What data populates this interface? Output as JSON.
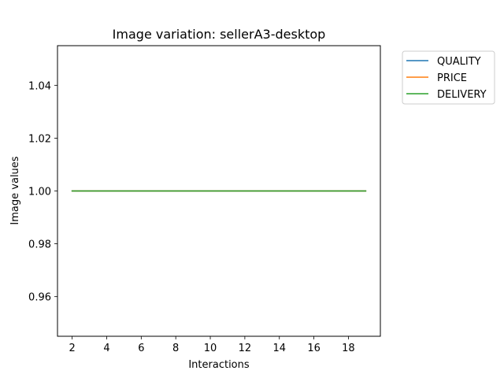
{
  "chart_data": {
    "type": "line",
    "title": "Image variation: sellerA3-desktop",
    "xlabel": "Interactions",
    "ylabel": "Image values",
    "xlim": [
      1.15,
      19.85
    ],
    "ylim": [
      0.945,
      1.055
    ],
    "x_ticks": [
      2,
      4,
      6,
      8,
      10,
      12,
      14,
      16,
      18
    ],
    "y_ticks": [
      0.96,
      0.98,
      1.0,
      1.02,
      1.04
    ],
    "x_tick_labels": [
      "2",
      "4",
      "6",
      "8",
      "10",
      "12",
      "14",
      "16",
      "18"
    ],
    "y_tick_labels": [
      "0.96",
      "0.98",
      "1.00",
      "1.02",
      "1.04"
    ],
    "x": [
      2,
      3,
      4,
      5,
      6,
      7,
      8,
      9,
      10,
      11,
      12,
      13,
      14,
      15,
      16,
      17,
      18,
      19
    ],
    "series": [
      {
        "name": "QUALITY",
        "color": "#1f77b4",
        "values": [
          1,
          1,
          1,
          1,
          1,
          1,
          1,
          1,
          1,
          1,
          1,
          1,
          1,
          1,
          1,
          1,
          1,
          1
        ]
      },
      {
        "name": "PRICE",
        "color": "#ff7f0e",
        "values": [
          1,
          1,
          1,
          1,
          1,
          1,
          1,
          1,
          1,
          1,
          1,
          1,
          1,
          1,
          1,
          1,
          1,
          1
        ]
      },
      {
        "name": "DELIVERY",
        "color": "#2ca02c",
        "values": [
          1,
          1,
          1,
          1,
          1,
          1,
          1,
          1,
          1,
          1,
          1,
          1,
          1,
          1,
          1,
          1,
          1,
          1
        ]
      }
    ],
    "grid": false,
    "legend_position": "outside-top-right"
  }
}
